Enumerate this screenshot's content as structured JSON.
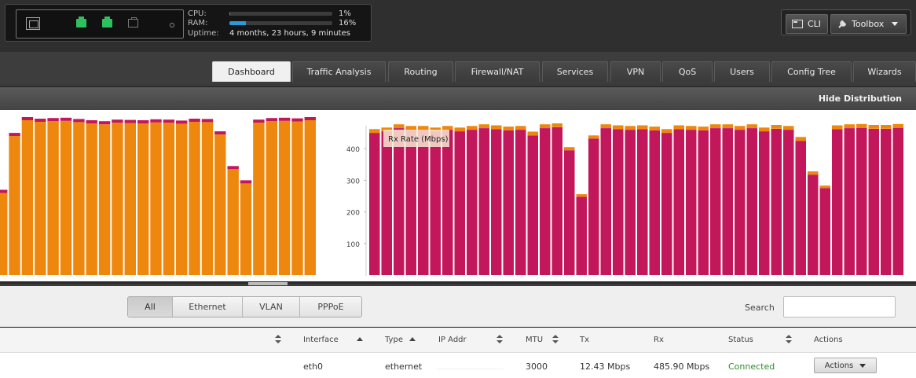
{
  "status": {
    "cpu_label": "CPU:",
    "cpu_value": "1%",
    "cpu_fraction": 0.01,
    "ram_label": "RAM:",
    "ram_value": "16%",
    "ram_fraction": 0.16,
    "uptime_label": "Uptime:",
    "uptime_value": "4 months, 23 hours, 9 minutes",
    "ports": [
      "eth0",
      "up",
      "up",
      "down"
    ]
  },
  "toolbar": {
    "cli_label": "CLI",
    "toolbox_label": "Toolbox"
  },
  "tabs": [
    {
      "label": "Dashboard",
      "active": true
    },
    {
      "label": "Traffic Analysis"
    },
    {
      "label": "Routing"
    },
    {
      "label": "Firewall/NAT"
    },
    {
      "label": "Services"
    },
    {
      "label": "VPN"
    },
    {
      "label": "QoS"
    },
    {
      "label": "Users"
    },
    {
      "label": "Config Tree"
    },
    {
      "label": "Wizards"
    }
  ],
  "distribution": {
    "hide_label": "Hide Distribution"
  },
  "chart_data": [
    {
      "type": "bar",
      "stacked": true,
      "series": [
        {
          "values": [
            260,
            440,
            490,
            485,
            487,
            488,
            484,
            480,
            477,
            482,
            481,
            480,
            483,
            482,
            479,
            485,
            484,
            445,
            335,
            290,
            482,
            487,
            488,
            486,
            490
          ]
        },
        {
          "values": [
            10,
            10,
            10,
            10,
            10,
            10,
            10,
            10,
            10,
            10,
            10,
            10,
            10,
            10,
            10,
            10,
            10,
            10,
            10,
            10,
            10,
            10,
            10,
            10,
            10
          ]
        }
      ],
      "colors": [
        "#ee870e",
        "#c2185b"
      ],
      "ylim": [
        0,
        500
      ]
    },
    {
      "type": "bar",
      "stacked": true,
      "tooltip_label": "Rx Rate (Mbps)",
      "y_ticks": [
        "100",
        "200",
        "300",
        "400"
      ],
      "series": [
        {
          "values": [
            450,
            455,
            465,
            460,
            460,
            455,
            460,
            455,
            460,
            465,
            462,
            458,
            460,
            442,
            465,
            468,
            395,
            248,
            432,
            465,
            462,
            460,
            462,
            458,
            450,
            462,
            460,
            458,
            465,
            465,
            460,
            465,
            455,
            463,
            460,
            425,
            318,
            275,
            462,
            465,
            466,
            463,
            463,
            466
          ]
        },
        {
          "values": [
            12,
            12,
            12,
            12,
            12,
            12,
            12,
            12,
            12,
            12,
            12,
            12,
            12,
            12,
            12,
            12,
            10,
            8,
            10,
            12,
            12,
            12,
            12,
            12,
            12,
            12,
            12,
            12,
            12,
            12,
            12,
            12,
            12,
            12,
            12,
            12,
            10,
            8,
            12,
            12,
            12,
            12,
            12,
            12
          ]
        }
      ],
      "colors": [
        "#c2185b",
        "#ee870e"
      ],
      "ylim": [
        0,
        500
      ]
    }
  ],
  "filters": {
    "buttons": [
      {
        "label": "All",
        "active": true
      },
      {
        "label": "Ethernet"
      },
      {
        "label": "VLAN"
      },
      {
        "label": "PPPoE"
      }
    ],
    "search_label": "Search",
    "search_value": ""
  },
  "table": {
    "headers": [
      "Interface",
      "Type",
      "IP Addr",
      "MTU",
      "Tx",
      "Rx",
      "Status",
      "Actions"
    ],
    "row": {
      "interface": "eth0",
      "type": "ethernet",
      "mtu": "3000",
      "tx": "12.43 Mbps",
      "rx": "485.90 Mbps",
      "status": "Connected",
      "actions": "Actions"
    }
  }
}
